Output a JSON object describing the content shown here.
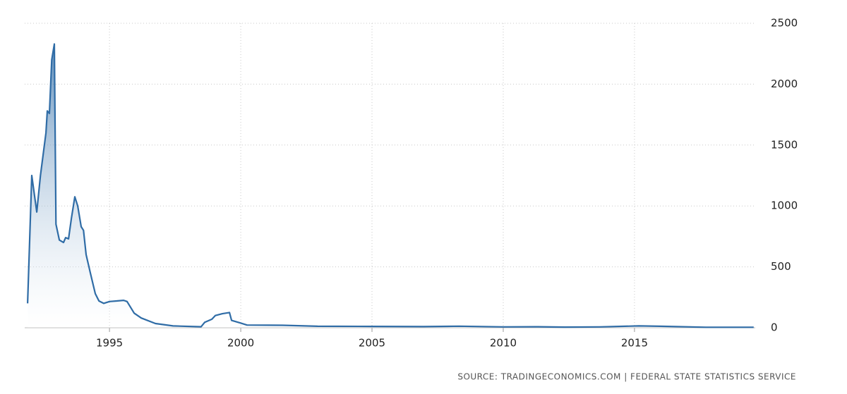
{
  "chart_data": {
    "type": "area-line",
    "source": "SOURCE: TRADINGECONOMICS.COM | FEDERAL STATE STATISTICS SERVICE",
    "color": "#2f6ca6",
    "grid": true,
    "y_axis_side": "right",
    "x": [
      1991.88,
      1992.04,
      1992.23,
      1992.37,
      1992.58,
      1992.63,
      1992.71,
      1992.8,
      1992.9,
      1992.96,
      1993.09,
      1993.25,
      1993.33,
      1993.44,
      1993.55,
      1993.68,
      1993.79,
      1993.92,
      1994.01,
      1994.11,
      1994.27,
      1994.46,
      1994.6,
      1994.78,
      1995.0,
      1995.27,
      1995.54,
      1995.67,
      1995.94,
      1996.21,
      1996.75,
      1997.42,
      1998.49,
      1998.63,
      1998.9,
      1999.03,
      1999.3,
      1999.57,
      1999.65,
      1999.97,
      2000.24,
      2001.59,
      2002.93,
      2005.0,
      2006.96,
      2008.31,
      2010.0,
      2011.26,
      2012.34,
      2013.68,
      2015.16,
      2015.97,
      2017.72,
      2019.54
    ],
    "values": [
      200,
      1250,
      950,
      1250,
      1600,
      1780,
      1760,
      2200,
      2330,
      850,
      720,
      700,
      740,
      730,
      900,
      1075,
      1000,
      830,
      800,
      600,
      450,
      280,
      220,
      200,
      215,
      220,
      225,
      215,
      120,
      80,
      35,
      15,
      8,
      45,
      70,
      100,
      115,
      125,
      60,
      40,
      22,
      20,
      12,
      11,
      9,
      13,
      7,
      8,
      5,
      7,
      15,
      12,
      4,
      4
    ],
    "xlim": [
      1991.77,
      2019.6
    ],
    "xticks": [
      1995,
      2000,
      2005,
      2010,
      2015
    ],
    "ylim": [
      0,
      2500
    ],
    "yticks": [
      0,
      500,
      1000,
      1500,
      2000,
      2500
    ]
  }
}
